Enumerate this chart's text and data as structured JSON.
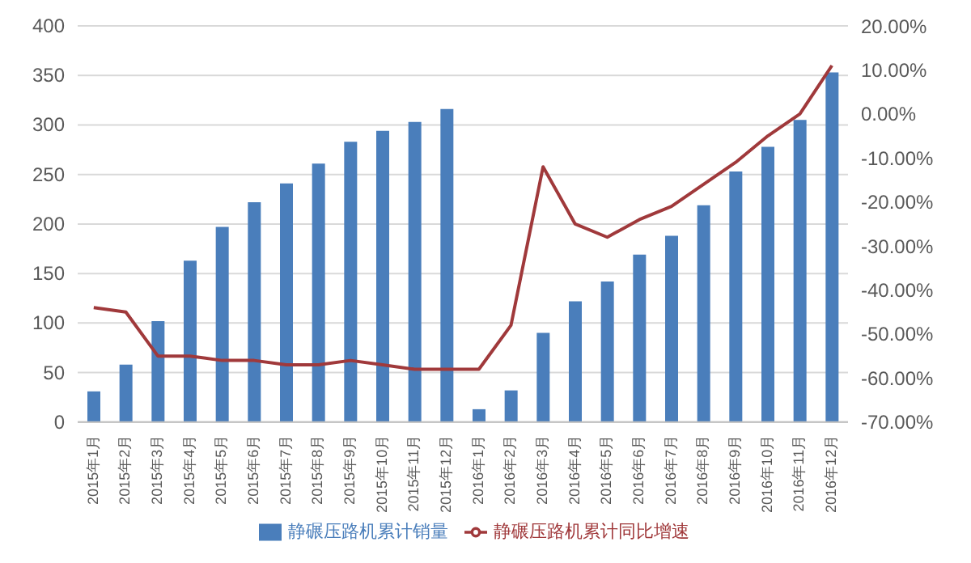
{
  "chart_data": {
    "type": "bar",
    "categories": [
      "2015年1月",
      "2015年2月",
      "2015年3月",
      "2015年4月",
      "2015年5月",
      "2015年6月",
      "2015年7月",
      "2015年8月",
      "2015年9月",
      "2015年10月",
      "2015年11月",
      "2015年12月",
      "2016年1月",
      "2016年2月",
      "2016年3月",
      "2016年4月",
      "2016年5月",
      "2016年6月",
      "2016年7月",
      "2016年8月",
      "2016年9月",
      "2016年10月",
      "2016年11月",
      "2016年12月"
    ],
    "series": [
      {
        "name": "静碾压路机累计销量",
        "color": "#4a7ebb",
        "values": [
          31,
          58,
          102,
          163,
          197,
          222,
          241,
          261,
          283,
          294,
          303,
          316,
          13,
          32,
          90,
          122,
          142,
          169,
          188,
          219,
          253,
          278,
          305,
          353
        ]
      },
      {
        "name": "静碾压路机累计同比增速",
        "type": "line",
        "axis": "y2",
        "color": "#a0393b",
        "values": [
          -44,
          -45,
          -55,
          -55,
          -56,
          -56,
          -57,
          -57,
          -56,
          -57,
          -58,
          -58,
          -58,
          -48,
          -12,
          -25,
          -28,
          -24,
          -21,
          -16,
          -11,
          -5,
          0,
          11
        ]
      }
    ],
    "ylim": [
      0,
      400
    ],
    "yticks": [
      0,
      50,
      100,
      150,
      200,
      250,
      300,
      350,
      400
    ],
    "y2lim": [
      -70,
      20
    ],
    "y2ticks": [
      {
        "value": -70,
        "label": "-70.00%"
      },
      {
        "value": -60,
        "label": "-60.00%"
      },
      {
        "value": -50,
        "label": "-50.00%"
      },
      {
        "value": -40,
        "label": "-40.00%"
      },
      {
        "value": -30,
        "label": "-30.00%"
      },
      {
        "value": -20,
        "label": "-20.00%"
      },
      {
        "value": -10,
        "label": "-10.00%"
      },
      {
        "value": 0,
        "label": "0.00%"
      },
      {
        "value": 10,
        "label": "10.00%"
      },
      {
        "value": 20,
        "label": "20.00%"
      }
    ],
    "grid": "y",
    "legend": "bottom",
    "marker": "none",
    "line_style": "solid"
  }
}
